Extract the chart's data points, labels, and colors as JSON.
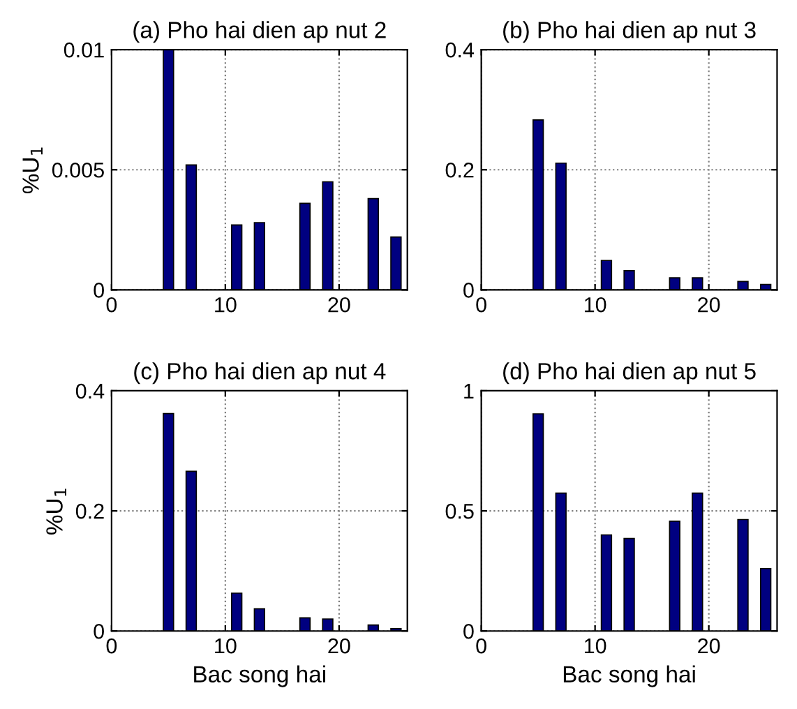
{
  "chart_data": [
    {
      "type": "bar",
      "title": "(a) Pho hai dien ap nut 2",
      "ylabel": "%U$_{1}$",
      "x": [
        5,
        7,
        11,
        13,
        17,
        19,
        23,
        25
      ],
      "values": [
        0.01,
        0.0052,
        0.0027,
        0.0028,
        0.0036,
        0.0045,
        0.0038,
        0.0022
      ],
      "color": "#000080",
      "xlim": [
        0,
        26
      ],
      "xticks": [
        0,
        10,
        20
      ],
      "ylim": [
        0,
        0.01
      ],
      "yticks": [
        0,
        0.005,
        0.01
      ],
      "grid": true
    },
    {
      "type": "bar",
      "title": "(b) Pho hai dien ap nut 3",
      "x": [
        5,
        7,
        11,
        13,
        17,
        19,
        23,
        25
      ],
      "values": [
        0.283,
        0.211,
        0.049,
        0.032,
        0.02,
        0.02,
        0.014,
        0.009
      ],
      "color": "#000080",
      "xlim": [
        0,
        26
      ],
      "xticks": [
        0,
        10,
        20
      ],
      "ylim": [
        0,
        0.4
      ],
      "yticks": [
        0,
        0.2,
        0.4
      ],
      "grid": true
    },
    {
      "type": "bar",
      "title": "(c) Pho hai dien ap nut 4",
      "xlabel": "Bac song hai",
      "ylabel": "%U$_{1}$",
      "x": [
        5,
        7,
        11,
        13,
        17,
        19,
        23,
        25
      ],
      "values": [
        0.362,
        0.266,
        0.063,
        0.037,
        0.022,
        0.02,
        0.01,
        0.004
      ],
      "color": "#000080",
      "xlim": [
        0,
        26
      ],
      "xticks": [
        0,
        10,
        20
      ],
      "ylim": [
        0,
        0.4
      ],
      "yticks": [
        0,
        0.2,
        0.4
      ],
      "grid": true
    },
    {
      "type": "bar",
      "title": "(d) Pho hai dien ap nut 5",
      "xlabel": "Bac song hai",
      "x": [
        5,
        7,
        11,
        13,
        17,
        19,
        23,
        25
      ],
      "values": [
        0.904,
        0.574,
        0.4,
        0.385,
        0.457,
        0.574,
        0.464,
        0.26
      ],
      "color": "#000080",
      "xlim": [
        0,
        26
      ],
      "xticks": [
        0,
        10,
        20
      ],
      "ylim": [
        0,
        1
      ],
      "yticks": [
        0,
        0.5,
        1
      ],
      "grid": true
    }
  ]
}
